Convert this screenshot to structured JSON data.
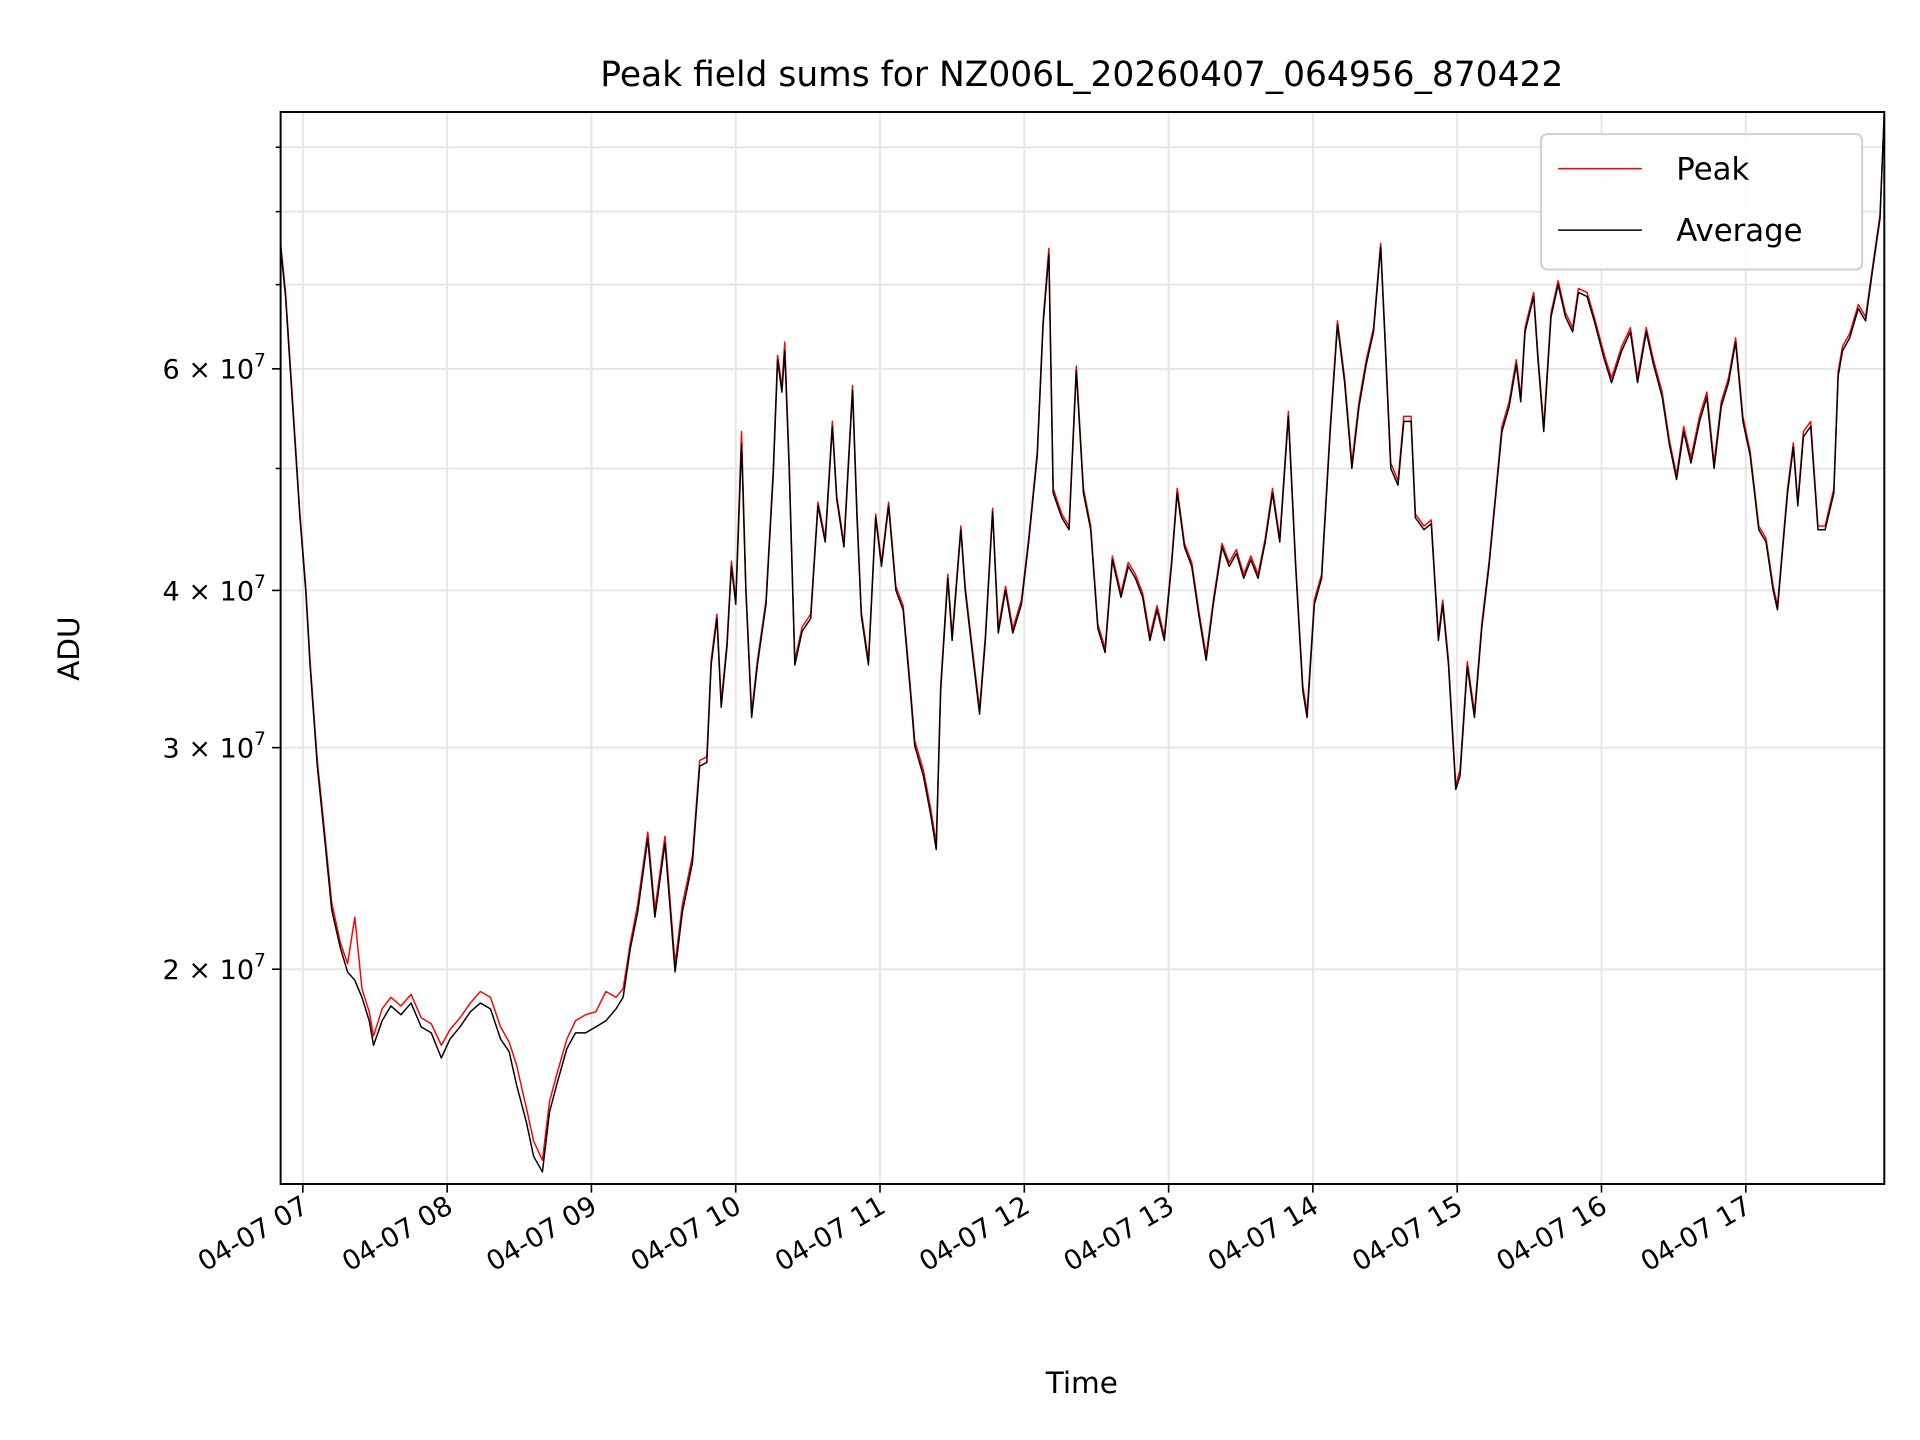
{
  "chart_data": {
    "type": "line",
    "title": "Peak field sums for NZ006L_20260407_064956_870422",
    "xlabel": "Time",
    "ylabel": "ADU",
    "yscale": "log",
    "ylim": [
      13500000.0,
      96000000.0
    ],
    "xlim_hours": [
      6.846,
      17.96
    ],
    "grid": true,
    "legend_position": "top-right",
    "xticks": [
      {
        "hour": 7,
        "label": "04-07 07"
      },
      {
        "hour": 8,
        "label": "04-07 08"
      },
      {
        "hour": 9,
        "label": "04-07 09"
      },
      {
        "hour": 10,
        "label": "04-07 10"
      },
      {
        "hour": 11,
        "label": "04-07 11"
      },
      {
        "hour": 12,
        "label": "04-07 12"
      },
      {
        "hour": 13,
        "label": "04-07 13"
      },
      {
        "hour": 14,
        "label": "04-07 14"
      },
      {
        "hour": 15,
        "label": "04-07 15"
      },
      {
        "hour": 16,
        "label": "04-07 16"
      },
      {
        "hour": 17,
        "label": "04-07 17"
      }
    ],
    "yticks": [
      {
        "value": 20000000.0,
        "mantissa": "2 × 10",
        "exponent": "7"
      },
      {
        "value": 30000000.0,
        "mantissa": "3 × 10",
        "exponent": "7"
      },
      {
        "value": 40000000.0,
        "mantissa": "4 × 10",
        "exponent": "7"
      },
      {
        "value": 60000000.0,
        "mantissa": "6 × 10",
        "exponent": "7"
      }
    ],
    "yminor": [
      50000000.0,
      70000000.0,
      80000000.0,
      90000000.0
    ],
    "x_hours": [
      6.846,
      6.88,
      6.93,
      6.98,
      7.02,
      7.05,
      7.1,
      7.15,
      7.2,
      7.26,
      7.31,
      7.36,
      7.41,
      7.46,
      7.49,
      7.55,
      7.61,
      7.68,
      7.75,
      7.82,
      7.89,
      7.96,
      8.02,
      8.09,
      8.16,
      8.23,
      8.3,
      8.37,
      8.43,
      8.48,
      8.55,
      8.6,
      8.66,
      8.71,
      8.76,
      8.83,
      8.89,
      8.96,
      9.03,
      9.1,
      9.17,
      9.22,
      9.27,
      9.32,
      9.39,
      9.44,
      9.51,
      9.58,
      9.63,
      9.7,
      9.75,
      9.8,
      9.83,
      9.87,
      9.9,
      9.94,
      9.97,
      10.0,
      10.04,
      10.07,
      10.11,
      10.15,
      10.21,
      10.26,
      10.29,
      10.32,
      10.34,
      10.37,
      10.41,
      10.46,
      10.52,
      10.57,
      10.62,
      10.67,
      10.7,
      10.75,
      10.81,
      10.84,
      10.87,
      10.92,
      10.97,
      11.01,
      11.06,
      11.11,
      11.16,
      11.21,
      11.24,
      11.3,
      11.35,
      11.39,
      11.42,
      11.47,
      11.5,
      11.56,
      11.59,
      11.64,
      11.69,
      11.73,
      11.78,
      11.82,
      11.87,
      11.92,
      11.98,
      12.03,
      12.09,
      12.13,
      12.17,
      12.2,
      12.26,
      12.31,
      12.36,
      12.41,
      12.46,
      12.51,
      12.56,
      12.61,
      12.67,
      12.72,
      12.77,
      12.82,
      12.87,
      12.92,
      12.97,
      13.02,
      13.06,
      13.11,
      13.16,
      13.21,
      13.26,
      13.31,
      13.37,
      13.42,
      13.47,
      13.52,
      13.57,
      13.62,
      13.67,
      13.72,
      13.77,
      13.83,
      13.88,
      13.93,
      13.96,
      14.01,
      14.06,
      14.12,
      14.17,
      14.22,
      14.27,
      14.32,
      14.37,
      14.42,
      14.47,
      14.5,
      14.54,
      14.59,
      14.63,
      14.68,
      14.71,
      14.77,
      14.82,
      14.87,
      14.9,
      14.94,
      14.99,
      15.02,
      15.07,
      15.12,
      15.17,
      15.22,
      15.26,
      15.31,
      15.36,
      15.41,
      15.44,
      15.47,
      15.53,
      15.56,
      15.6,
      15.65,
      15.7,
      15.75,
      15.8,
      15.84,
      15.9,
      15.95,
      16.02,
      16.07,
      16.14,
      16.2,
      16.25,
      16.31,
      16.36,
      16.42,
      16.47,
      16.52,
      16.57,
      16.62,
      16.68,
      16.73,
      16.78,
      16.83,
      16.88,
      16.93,
      16.98,
      17.03,
      17.09,
      17.14,
      17.19,
      17.22,
      17.26,
      17.29,
      17.33,
      17.36,
      17.4,
      17.45,
      17.5,
      17.55,
      17.61,
      17.64,
      17.67,
      17.72,
      17.78,
      17.83,
      17.88,
      17.93,
      17.96
    ],
    "series": [
      {
        "name": "Peak",
        "color": "#ff0000",
        "values": [
          75500000.0,
          69000000.0,
          56500000.0,
          46000000.0,
          40300000.0,
          35200000.0,
          29300000.0,
          25800000.0,
          22600000.0,
          21000000.0,
          20200000.0,
          22000000.0,
          19300000.0,
          18500000.0,
          17700000.0,
          18600000.0,
          19000000.0,
          18700000.0,
          19100000.0,
          18300000.0,
          18100000.0,
          17400000.0,
          17900000.0,
          18300000.0,
          18800000.0,
          19200000.0,
          19000000.0,
          18000000.0,
          17500000.0,
          16800000.0,
          15500000.0,
          14600000.0,
          14100000.0,
          15700000.0,
          16500000.0,
          17600000.0,
          18200000.0,
          18400000.0,
          18500000.0,
          19200000.0,
          19000000.0,
          19300000.0,
          21000000.0,
          22500000.0,
          25700000.0,
          22300000.0,
          25500000.0,
          20200000.0,
          22500000.0,
          24600000.0,
          29300000.0,
          29500000.0,
          35200000.0,
          38300000.0,
          32600000.0,
          36400000.0,
          42200000.0,
          39300000.0,
          53500000.0,
          40300000.0,
          32000000.0,
          35200000.0,
          39300000.0,
          50000000.0,
          61500000.0,
          58000000.0,
          63000000.0,
          50500000.0,
          35200000.0,
          37400000.0,
          38300000.0,
          47000000.0,
          44000000.0,
          54500000.0,
          47600000.0,
          43600000.0,
          58200000.0,
          46200000.0,
          38500000.0,
          35200000.0,
          46000000.0,
          42100000.0,
          47000000.0,
          40300000.0,
          38900000.0,
          33600000.0,
          30400000.0,
          28800000.0,
          26900000.0,
          25200000.0,
          33600000.0,
          41200000.0,
          36800000.0,
          45000000.0,
          40300000.0,
          36000000.0,
          32200000.0,
          36800000.0,
          46500000.0,
          37300000.0,
          40300000.0,
          37300000.0,
          39300000.0,
          44000000.0,
          51600000.0,
          65500000.0,
          74800000.0,
          48200000.0,
          46000000.0,
          45000000.0,
          60300000.0,
          48200000.0,
          45000000.0,
          37600000.0,
          36000000.0,
          42600000.0,
          39800000.0,
          42100000.0,
          41200000.0,
          39800000.0,
          36800000.0,
          38900000.0,
          36800000.0,
          42100000.0,
          48200000.0,
          43600000.0,
          42100000.0,
          38500000.0,
          35500000.0,
          39300000.0,
          43600000.0,
          42100000.0,
          43100000.0,
          41200000.0,
          42600000.0,
          41200000.0,
          44000000.0,
          48200000.0,
          44000000.0,
          55500000.0,
          42100000.0,
          33600000.0,
          32000000.0,
          39300000.0,
          41200000.0,
          54000000.0,
          65500000.0,
          59000000.0,
          50500000.0,
          56500000.0,
          61000000.0,
          64700000.0,
          75500000.0,
          63500000.0,
          50500000.0,
          48900000.0,
          55000000.0,
          55000000.0,
          46000000.0,
          45000000.0,
          45500000.0,
          36800000.0,
          39300000.0,
          35200000.0,
          28000000.0,
          28800000.0,
          35100000.0,
          32000000.0,
          37600000.0,
          42100000.0,
          47000000.0,
          54000000.0,
          56500000.0,
          61000000.0,
          57000000.0,
          64700000.0,
          69000000.0,
          61500000.0,
          54000000.0,
          66500000.0,
          70500000.0,
          66500000.0,
          64700000.0,
          69500000.0,
          69000000.0,
          66000000.0,
          61500000.0,
          59000000.0,
          62500000.0,
          64700000.0,
          59000000.0,
          64700000.0,
          61000000.0,
          57500000.0,
          52700000.0,
          49400000.0,
          54000000.0,
          51000000.0,
          55000000.0,
          57500000.0,
          50500000.0,
          56500000.0,
          59000000.0,
          63500000.0,
          55000000.0,
          51600000.0,
          45000000.0,
          44000000.0,
          40300000.0,
          38900000.0,
          44000000.0,
          48200000.0,
          52400000.0,
          47000000.0,
          53500000.0,
          54500000.0,
          45000000.0,
          45000000.0,
          48200000.0,
          59700000.0,
          62500000.0,
          64000000.0,
          67500000.0,
          66000000.0,
          72500000.0,
          79500000.0,
          96000000.0
        ]
      },
      {
        "name": "Average",
        "color": "#000000",
        "values": [
          75000000.0,
          68500000.0,
          56000000.0,
          45700000.0,
          40000000.0,
          34900000.0,
          29000000.0,
          25500000.0,
          22300000.0,
          20800000.0,
          19900000.0,
          19600000.0,
          19000000.0,
          18200000.0,
          17400000.0,
          18200000.0,
          18700000.0,
          18400000.0,
          18800000.0,
          18000000.0,
          17800000.0,
          17000000.0,
          17600000.0,
          18000000.0,
          18500000.0,
          18800000.0,
          18600000.0,
          17600000.0,
          17200000.0,
          16200000.0,
          15100000.0,
          14200000.0,
          13800000.0,
          15400000.0,
          16200000.0,
          17300000.0,
          17800000.0,
          17800000.0,
          18000000.0,
          18200000.0,
          18600000.0,
          19000000.0,
          20800000.0,
          22200000.0,
          25400000.0,
          22000000.0,
          25200000.0,
          19900000.0,
          22200000.0,
          24300000.0,
          29000000.0,
          29200000.0,
          34900000.0,
          38000000.0,
          32300000.0,
          36100000.0,
          41800000.0,
          39000000.0,
          52300000.0,
          40000000.0,
          31700000.0,
          34900000.0,
          39000000.0,
          49500000.0,
          61000000.0,
          57500000.0,
          62000000.0,
          50000000.0,
          34900000.0,
          37100000.0,
          38000000.0,
          46700000.0,
          43700000.0,
          54000000.0,
          47300000.0,
          43300000.0,
          57700000.0,
          45700000.0,
          38200000.0,
          34900000.0,
          45700000.0,
          41800000.0,
          46700000.0,
          40000000.0,
          38600000.0,
          33300000.0,
          30100000.0,
          28500000.0,
          26600000.0,
          24900000.0,
          33300000.0,
          40900000.0,
          36500000.0,
          44700000.0,
          40000000.0,
          35700000.0,
          31900000.0,
          36500000.0,
          46200000.0,
          37000000.0,
          40000000.0,
          37000000.0,
          39000000.0,
          43700000.0,
          51200000.0,
          65000000.0,
          74000000.0,
          47800000.0,
          45700000.0,
          44700000.0,
          59800000.0,
          47800000.0,
          44700000.0,
          37300000.0,
          35700000.0,
          42300000.0,
          39500000.0,
          41800000.0,
          40900000.0,
          39500000.0,
          36500000.0,
          38600000.0,
          36500000.0,
          41800000.0,
          47800000.0,
          43300000.0,
          41800000.0,
          38200000.0,
          35200000.0,
          39000000.0,
          43300000.0,
          41800000.0,
          42800000.0,
          40900000.0,
          42300000.0,
          40900000.0,
          43700000.0,
          47800000.0,
          43700000.0,
          55000000.0,
          41800000.0,
          33300000.0,
          31700000.0,
          39000000.0,
          40900000.0,
          53500000.0,
          65000000.0,
          58500000.0,
          50000000.0,
          56000000.0,
          60500000.0,
          64200000.0,
          75000000.0,
          63000000.0,
          50000000.0,
          48500000.0,
          54500000.0,
          54500000.0,
          45700000.0,
          44700000.0,
          45200000.0,
          36500000.0,
          39000000.0,
          34900000.0,
          27800000.0,
          28500000.0,
          34800000.0,
          31700000.0,
          37300000.0,
          41800000.0,
          46700000.0,
          53500000.0,
          56000000.0,
          60500000.0,
          56500000.0,
          64200000.0,
          68500000.0,
          61000000.0,
          53500000.0,
          66000000.0,
          70000000.0,
          66000000.0,
          64200000.0,
          69000000.0,
          68500000.0,
          65500000.0,
          61000000.0,
          58500000.0,
          62000000.0,
          64200000.0,
          58500000.0,
          64200000.0,
          60500000.0,
          57000000.0,
          52300000.0,
          49000000.0,
          53500000.0,
          50500000.0,
          54500000.0,
          57000000.0,
          50000000.0,
          56000000.0,
          58500000.0,
          63000000.0,
          54500000.0,
          51200000.0,
          44700000.0,
          43700000.0,
          40000000.0,
          38600000.0,
          43700000.0,
          47800000.0,
          52000000.0,
          46700000.0,
          53000000.0,
          54000000.0,
          44700000.0,
          44700000.0,
          47800000.0,
          59200000.0,
          62000000.0,
          63500000.0,
          67000000.0,
          65500000.0,
          72000000.0,
          79000000.0,
          96000000.0
        ]
      }
    ]
  }
}
